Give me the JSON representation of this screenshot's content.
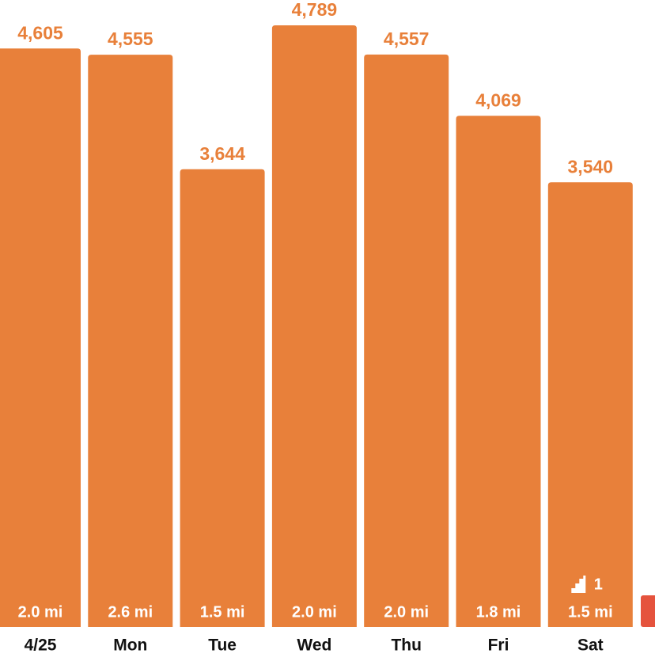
{
  "chart_data": {
    "type": "bar",
    "categories": [
      "4/25",
      "Mon",
      "Tue",
      "Wed",
      "Thu",
      "Fri",
      "Sat"
    ],
    "values": [
      4605,
      4555,
      3644,
      4789,
      4557,
      4069,
      3540
    ],
    "value_labels": [
      "4,605",
      "4,555",
      "3,644",
      "4,789",
      "4,557",
      "4,069",
      "3,540"
    ],
    "distance_labels": [
      "2.0 mi",
      "2.6 mi",
      "1.5 mi",
      "2.0 mi",
      "2.0 mi",
      "1.8 mi",
      "1.5 mi"
    ],
    "floor_labels": [
      null,
      null,
      null,
      null,
      null,
      null,
      "1"
    ],
    "color": "#e8803a"
  }
}
